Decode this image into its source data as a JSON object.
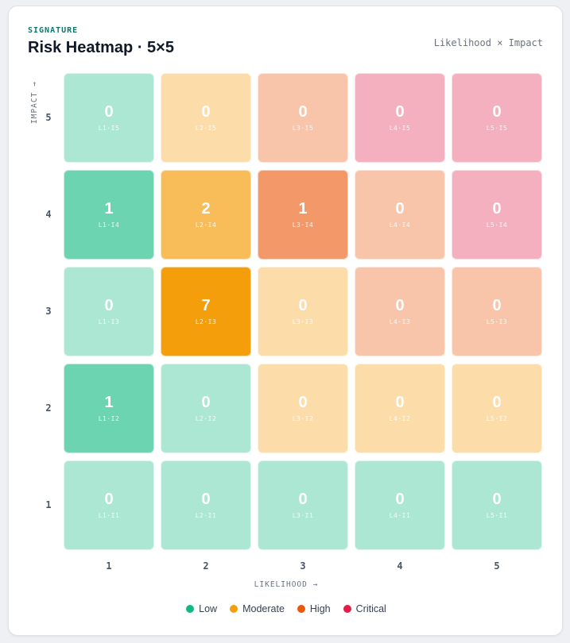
{
  "header": {
    "eyebrow": "SIGNATURE",
    "title": "Risk Heatmap · 5×5",
    "formula": "Likelihood × Impact"
  },
  "chart_data": {
    "type": "heatmap",
    "title": "Risk Heatmap · 5×5",
    "xlabel": "LIKELIHOOD →",
    "ylabel": "IMPACT →",
    "x_ticks": [
      "1",
      "2",
      "3",
      "4",
      "5"
    ],
    "y_ticks": [
      "5",
      "4",
      "3",
      "2",
      "1"
    ],
    "colors": {
      "low": "#10b981",
      "moderate": "#f59e0b",
      "high": "#ea580c",
      "critical": "#e11d48"
    },
    "rows": [
      {
        "impact": 5,
        "cells": [
          {
            "likelihood": 1,
            "count": 0,
            "code": "L1·I5",
            "level": "low"
          },
          {
            "likelihood": 2,
            "count": 0,
            "code": "L2·I5",
            "level": "moderate"
          },
          {
            "likelihood": 3,
            "count": 0,
            "code": "L3·I5",
            "level": "high"
          },
          {
            "likelihood": 4,
            "count": 0,
            "code": "L4·I5",
            "level": "critical"
          },
          {
            "likelihood": 5,
            "count": 0,
            "code": "L5·I5",
            "level": "critical"
          }
        ]
      },
      {
        "impact": 4,
        "cells": [
          {
            "likelihood": 1,
            "count": 1,
            "code": "L1·I4",
            "level": "low"
          },
          {
            "likelihood": 2,
            "count": 2,
            "code": "L2·I4",
            "level": "moderate"
          },
          {
            "likelihood": 3,
            "count": 1,
            "code": "L3·I4",
            "level": "high"
          },
          {
            "likelihood": 4,
            "count": 0,
            "code": "L4·I4",
            "level": "high"
          },
          {
            "likelihood": 5,
            "count": 0,
            "code": "L5·I4",
            "level": "critical"
          }
        ]
      },
      {
        "impact": 3,
        "cells": [
          {
            "likelihood": 1,
            "count": 0,
            "code": "L1·I3",
            "level": "low"
          },
          {
            "likelihood": 2,
            "count": 7,
            "code": "L2·I3",
            "level": "moderate"
          },
          {
            "likelihood": 3,
            "count": 0,
            "code": "L3·I3",
            "level": "moderate"
          },
          {
            "likelihood": 4,
            "count": 0,
            "code": "L4·I3",
            "level": "high"
          },
          {
            "likelihood": 5,
            "count": 0,
            "code": "L5·I3",
            "level": "high"
          }
        ]
      },
      {
        "impact": 2,
        "cells": [
          {
            "likelihood": 1,
            "count": 1,
            "code": "L1·I2",
            "level": "low"
          },
          {
            "likelihood": 2,
            "count": 0,
            "code": "L2·I2",
            "level": "low"
          },
          {
            "likelihood": 3,
            "count": 0,
            "code": "L3·I2",
            "level": "moderate"
          },
          {
            "likelihood": 4,
            "count": 0,
            "code": "L4·I2",
            "level": "moderate"
          },
          {
            "likelihood": 5,
            "count": 0,
            "code": "L5·I2",
            "level": "moderate"
          }
        ]
      },
      {
        "impact": 1,
        "cells": [
          {
            "likelihood": 1,
            "count": 0,
            "code": "L1·I1",
            "level": "low"
          },
          {
            "likelihood": 2,
            "count": 0,
            "code": "L2·I1",
            "level": "low"
          },
          {
            "likelihood": 3,
            "count": 0,
            "code": "L3·I1",
            "level": "low"
          },
          {
            "likelihood": 4,
            "count": 0,
            "code": "L4·I1",
            "level": "low"
          },
          {
            "likelihood": 5,
            "count": 0,
            "code": "L5·I1",
            "level": "low"
          }
        ]
      }
    ],
    "legend": [
      {
        "label": "Low",
        "level": "low"
      },
      {
        "label": "Moderate",
        "level": "moderate"
      },
      {
        "label": "High",
        "level": "high"
      },
      {
        "label": "Critical",
        "level": "critical"
      }
    ],
    "legend_position": "bottom-center"
  }
}
